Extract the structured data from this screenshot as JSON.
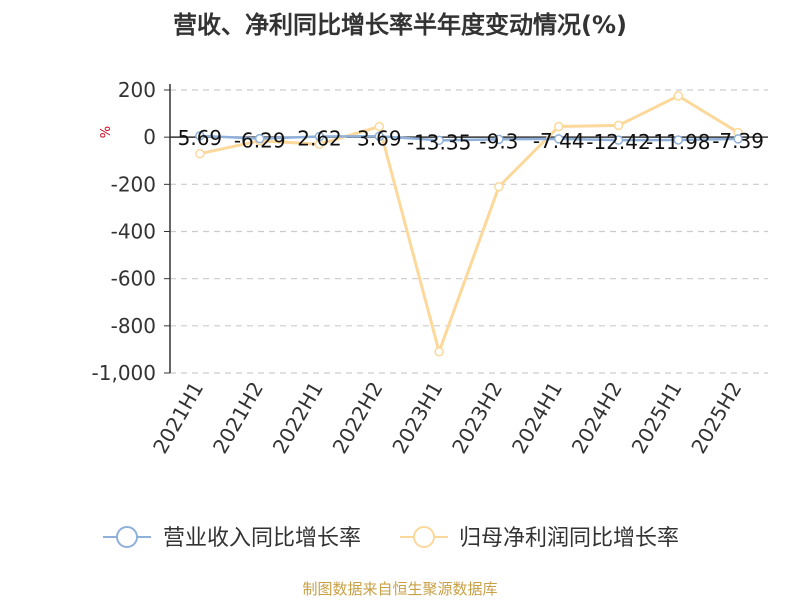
{
  "title": "营收、净利同比增长率半年度变动情况(%)",
  "source": "制图数据来自恒生聚源数据库",
  "colors": {
    "revenue": "#8fb0d8",
    "net_profit": "#fcd89b",
    "grid": "#cccccc",
    "unit": "#d0021b",
    "source": "#c8a045"
  },
  "chart_data": {
    "type": "line",
    "title": "营收、净利同比增长率半年度变动情况(%)",
    "ylabel": "%",
    "ylim": [
      -1000,
      200
    ],
    "yticks": [
      200,
      0,
      -200,
      -400,
      -600,
      -800,
      -1000
    ],
    "ytick_labels": [
      "200",
      "0",
      "-200",
      "-400",
      "-600",
      "-800",
      "-1,000"
    ],
    "grid": true,
    "legend_position": "bottom",
    "categories": [
      "2021H1",
      "2021H2",
      "2022H1",
      "2022H2",
      "2023H1",
      "2023H2",
      "2024H1",
      "2024H2",
      "2025H1",
      "2025H2"
    ],
    "series": [
      {
        "name": "营业收入同比增长率",
        "values": [
          5.69,
          -6.29,
          2.62,
          3.69,
          -13.35,
          -9.3,
          -7.44,
          -12.42,
          -11.98,
          -7.39
        ],
        "labels": [
          "5.69",
          "-6.29",
          "2.62",
          "3.69",
          "-13.35",
          "-9.3",
          "-7.44",
          "-12.42",
          "-11.98",
          "-7.39"
        ]
      },
      {
        "name": "归母净利润同比增长率",
        "values": [
          -70,
          -15,
          -30,
          45,
          -910,
          -210,
          45,
          50,
          175,
          20
        ]
      }
    ]
  }
}
